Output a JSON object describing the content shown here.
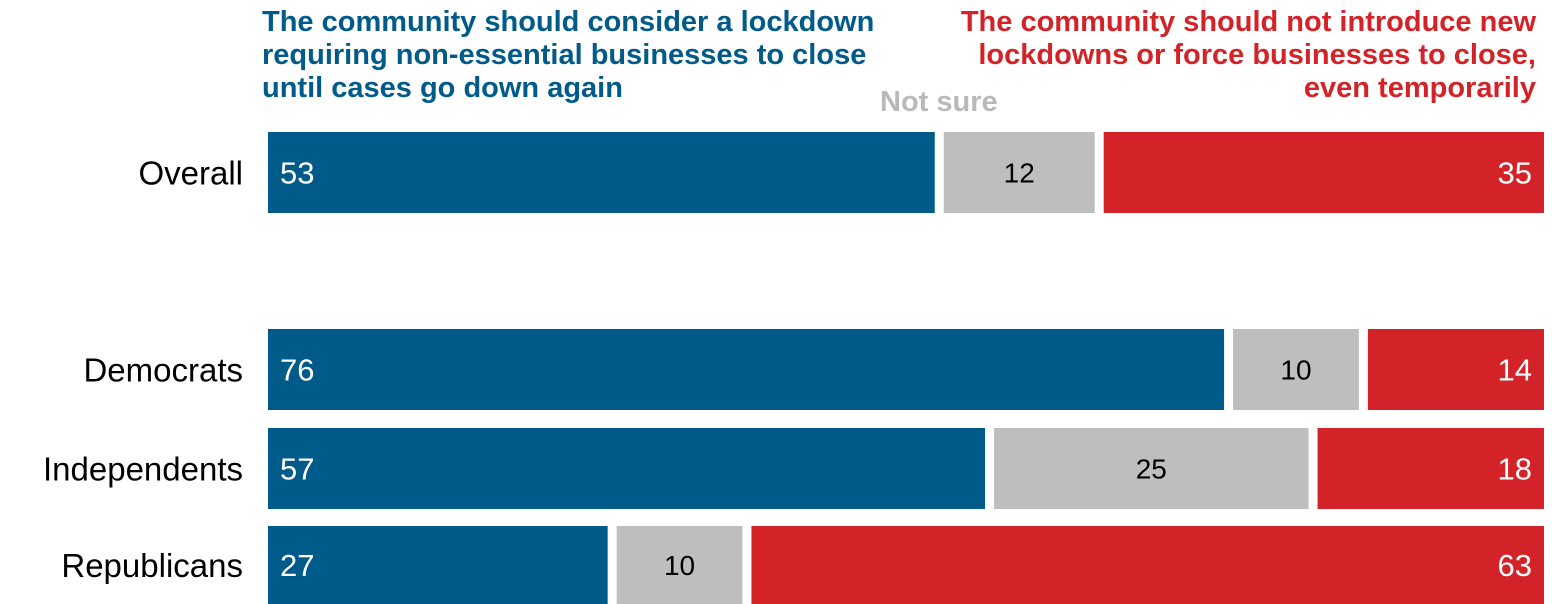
{
  "colors": {
    "support": "#005b8a",
    "not_sure": "#bebebe",
    "oppose": "#d42328"
  },
  "legend": {
    "support": "The community should consider a lockdown requiring non-essential businesses to close until cases go down again",
    "not_sure": "Not sure",
    "oppose": "The community should not introduce new lockdowns or force businesses to close, even temporarily"
  },
  "chart_data": {
    "type": "bar",
    "orientation": "horizontal",
    "stacked": true,
    "title": "",
    "xlabel": "",
    "ylabel": "",
    "xlim": [
      0,
      100
    ],
    "grid": false,
    "legend_position": "top",
    "categories": [
      "Overall",
      "Democrats",
      "Independents",
      "Republicans"
    ],
    "series": [
      {
        "name": "The community should consider a lockdown requiring non-essential businesses to close until cases go down again",
        "values": [
          53,
          76,
          57,
          27
        ]
      },
      {
        "name": "Not sure",
        "values": [
          12,
          10,
          25,
          10
        ]
      },
      {
        "name": "The community should not introduce new lockdowns or force businesses to close, even temporarily",
        "values": [
          35,
          14,
          18,
          63
        ]
      }
    ]
  }
}
